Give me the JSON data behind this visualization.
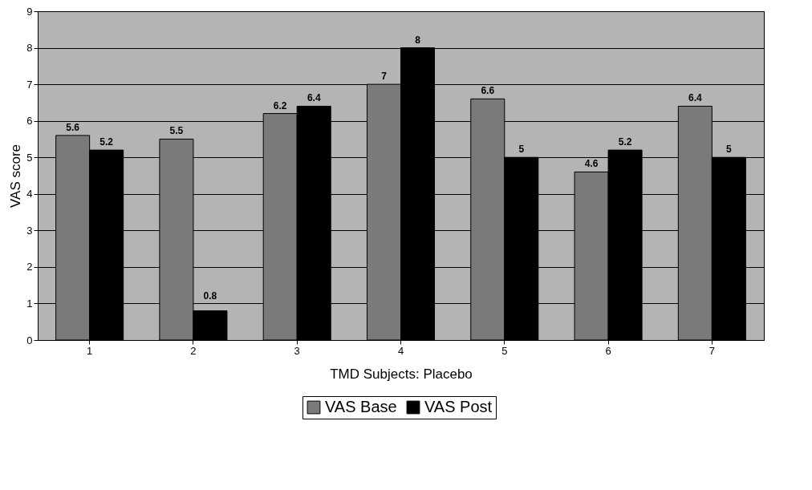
{
  "chart_data": {
    "type": "bar",
    "xlabel": "TMD Subjects: Placebo",
    "ylabel": "VAS score",
    "categories": [
      "1",
      "2",
      "3",
      "4",
      "5",
      "6",
      "7"
    ],
    "series": [
      {
        "name": "VAS Base",
        "color": "#7a7a7a",
        "values": [
          5.6,
          5.5,
          6.2,
          7,
          6.6,
          4.6,
          6.4
        ]
      },
      {
        "name": "VAS Post",
        "color": "#000000",
        "values": [
          5.2,
          0.8,
          6.4,
          8,
          5,
          5.2,
          5
        ]
      }
    ],
    "ylim": [
      0,
      9
    ],
    "yticks": [
      0,
      1,
      2,
      3,
      4,
      5,
      6,
      7,
      8,
      9
    ],
    "grid": "y",
    "legend": "bottom",
    "data_labels": true
  }
}
